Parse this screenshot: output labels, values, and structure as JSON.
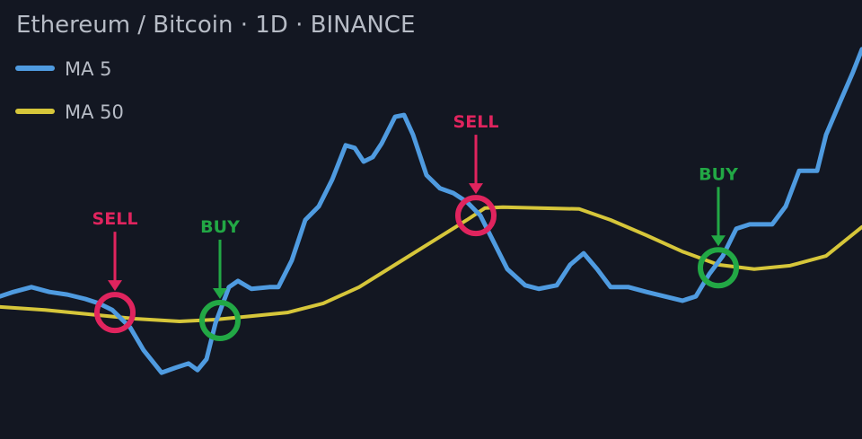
{
  "chart_data": {
    "type": "line",
    "title": "Ethereum / Bitcoin · 1D · BINANCE",
    "xlim": [
      0,
      960
    ],
    "ylim": [
      0,
      100
    ],
    "series": [
      {
        "name": "MA 5",
        "color": "#4f9be0",
        "x": [
          0,
          15,
          35,
          55,
          75,
          95,
          110,
          125,
          145,
          160,
          180,
          195,
          210,
          220,
          230,
          240,
          255,
          265,
          280,
          300,
          310,
          325,
          340,
          355,
          370,
          385,
          395,
          405,
          415,
          425,
          440,
          450,
          460,
          475,
          490,
          505,
          520,
          535,
          550,
          565,
          585,
          600,
          620,
          635,
          650,
          665,
          680,
          700,
          720,
          740,
          760,
          775,
          790,
          805,
          820,
          835,
          860,
          875,
          890,
          910,
          920,
          935,
          950,
          960
        ],
        "values": [
          32.5,
          33.5,
          34.6,
          33.5,
          32.9,
          31.9,
          30.9,
          29.4,
          25.4,
          20.2,
          15.1,
          16.2,
          17.2,
          15.7,
          18.2,
          26.4,
          34.6,
          36,
          34.2,
          34.6,
          34.6,
          40.7,
          49.9,
          53,
          59.1,
          66.9,
          66.3,
          63.2,
          64.2,
          67.3,
          73.4,
          73.8,
          69.3,
          60.1,
          57.1,
          56,
          54,
          50.9,
          44.8,
          38.7,
          35,
          34.2,
          35,
          39.7,
          42.3,
          38.7,
          34.6,
          34.6,
          33.5,
          32.5,
          31.5,
          32.5,
          37.6,
          41.7,
          47.9,
          48.9,
          48.9,
          53,
          61.1,
          61.1,
          69.3,
          76.5,
          83.6,
          88.8
        ]
      },
      {
        "name": "MA 50",
        "color": "#d6c63a",
        "x": [
          0,
          50,
          100,
          150,
          200,
          240,
          280,
          320,
          360,
          400,
          440,
          480,
          520,
          540,
          560,
          600,
          645,
          680,
          720,
          760,
          800,
          840,
          880,
          920,
          960
        ],
        "values": [
          30.1,
          29.4,
          28.4,
          27.4,
          26.8,
          27.2,
          28,
          28.8,
          30.9,
          34.6,
          39.7,
          44.8,
          49.9,
          52.6,
          52.8,
          52.6,
          52.4,
          49.9,
          46.4,
          42.7,
          39.7,
          38.7,
          39.5,
          41.7,
          48.3
        ]
      }
    ],
    "annotations": [
      {
        "text": "SELL",
        "x": 128,
        "y": 28.8,
        "color": "#e0245e"
      },
      {
        "text": "BUY",
        "x": 245,
        "y": 27,
        "color": "#22a845"
      },
      {
        "text": "SELL",
        "x": 530,
        "y": 50.9,
        "color": "#e0245e"
      },
      {
        "text": "BUY",
        "x": 800,
        "y": 39,
        "color": "#22a845"
      }
    ]
  }
}
